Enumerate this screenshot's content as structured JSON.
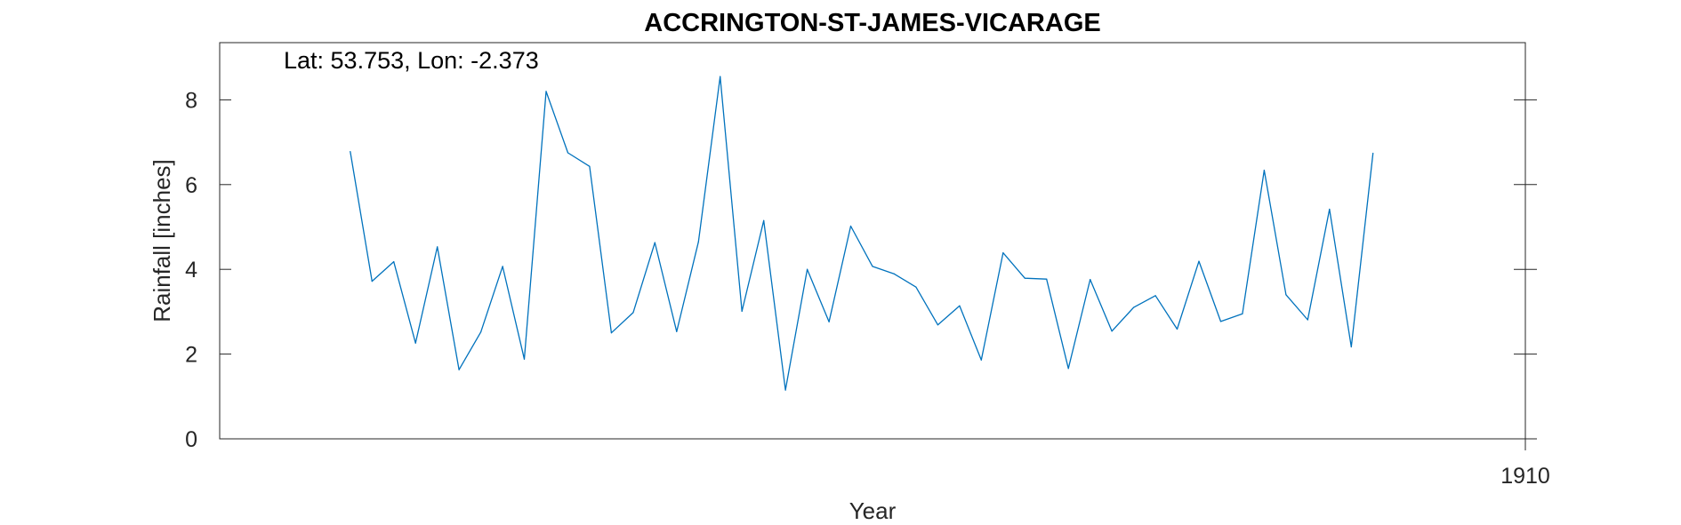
{
  "chart_data": {
    "type": "line",
    "title": "ACCRINGTON-ST-JAMES-VICARAGE",
    "annotation": "Lat: 53.753, Lon: -2.373",
    "xlabel": "Year",
    "ylabel": "Rainfall [inches]",
    "xlim": [
      1850,
      1910
    ],
    "ylim": [
      0,
      9.35
    ],
    "x_ticks": [
      1910
    ],
    "y_ticks": [
      0,
      2,
      4,
      6,
      8
    ],
    "grid": false,
    "series_color": "#0072BD",
    "series": [
      {
        "x": [
          1856,
          1857,
          1858,
          1859,
          1860,
          1861,
          1862,
          1863,
          1864,
          1865,
          1866,
          1867,
          1868,
          1869,
          1870,
          1871,
          1872,
          1873,
          1874,
          1875,
          1876,
          1877,
          1878,
          1879,
          1880,
          1881,
          1882,
          1883,
          1884,
          1885,
          1886,
          1887,
          1888,
          1889,
          1890,
          1891,
          1892,
          1893,
          1894,
          1895,
          1896,
          1897,
          1898,
          1899,
          1900,
          1901,
          1902,
          1903
        ],
        "y": [
          6.78,
          3.72,
          4.18,
          2.26,
          4.53,
          1.63,
          2.52,
          4.07,
          1.88,
          8.2,
          6.75,
          6.43,
          2.5,
          2.98,
          4.63,
          2.53,
          4.65,
          8.55,
          3.01,
          5.15,
          1.15,
          4.0,
          2.76,
          5.02,
          4.07,
          3.89,
          3.58,
          2.69,
          3.14,
          1.86,
          4.39,
          3.79,
          3.77,
          1.66,
          3.76,
          2.54,
          3.1,
          3.38,
          2.59,
          4.19,
          2.77,
          2.95,
          6.34,
          3.4,
          2.81,
          5.42,
          2.17,
          6.74
        ]
      }
    ]
  }
}
